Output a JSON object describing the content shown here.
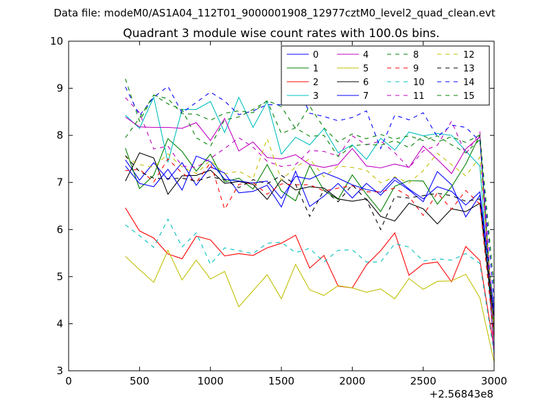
{
  "figure": {
    "suptitle": "Data file: modeM0/AS1A04_112T01_9000001908_12977cztM0_level2_quad_clean.evt",
    "background": "#ffffff"
  },
  "chart_data": {
    "type": "line",
    "title": "Quadrant 3 module wise count rates with 100.0s bins.",
    "xlabel": "",
    "ylabel": "",
    "xlim": [
      0,
      3000
    ],
    "ylim": [
      3,
      10
    ],
    "x_offset_label": "+2.56843e8",
    "xticks": [
      0,
      500,
      1000,
      1500,
      2000,
      2500,
      3000
    ],
    "yticks": [
      3,
      4,
      5,
      6,
      7,
      8,
      9,
      10
    ],
    "grid": false,
    "legend": {
      "position": "top-right",
      "columns": 4
    },
    "x": [
      400,
      500,
      600,
      700,
      800,
      900,
      1000,
      1100,
      1200,
      1300,
      1400,
      1500,
      1600,
      1700,
      1800,
      1900,
      2000,
      2100,
      2200,
      2300,
      2400,
      2500,
      2600,
      2700,
      2800,
      2900,
      3000
    ],
    "series": [
      {
        "name": "0",
        "color": "#0000ff",
        "style": "solid",
        "values": [
          7.48,
          7.05,
          7.42,
          7.06,
          7.42,
          6.94,
          7.33,
          7.2,
          6.78,
          6.81,
          6.94,
          6.48,
          7.24,
          6.49,
          6.71,
          6.98,
          6.67,
          6.98,
          6.73,
          7.05,
          6.84,
          6.59,
          7.23,
          6.95,
          6.27,
          6.73,
          4.15
        ]
      },
      {
        "name": "1",
        "color": "#008000",
        "style": "solid",
        "values": [
          7.73,
          6.87,
          7.15,
          7.93,
          7.66,
          7.24,
          7.6,
          7.01,
          7.09,
          6.86,
          7.38,
          6.82,
          6.61,
          7.36,
          6.83,
          6.64,
          7.16,
          6.75,
          6.38,
          6.92,
          7.04,
          7.03,
          6.54,
          6.91,
          7.39,
          8.01,
          3.68
        ]
      },
      {
        "name": "2",
        "color": "#ff0000",
        "style": "solid",
        "values": [
          6.46,
          5.97,
          5.82,
          5.48,
          5.38,
          5.86,
          5.78,
          5.44,
          5.49,
          5.45,
          5.61,
          5.71,
          5.88,
          5.18,
          5.45,
          4.8,
          4.76,
          5.25,
          5.55,
          5.93,
          5.03,
          5.27,
          5.31,
          4.89,
          5.64,
          5.34,
          3.47
        ]
      },
      {
        "name": "3",
        "color": "#00bfbf",
        "style": "solid",
        "values": [
          8.43,
          8.15,
          8.81,
          7.43,
          8.55,
          8.55,
          8.72,
          8.06,
          8.81,
          8.17,
          8.72,
          7.6,
          7.96,
          7.8,
          8.14,
          7.63,
          7.8,
          7.49,
          7.94,
          7.69,
          8.07,
          7.99,
          8.04,
          8.0,
          7.67,
          7.35,
          3.37
        ]
      },
      {
        "name": "4",
        "color": "#bf00bf",
        "style": "solid",
        "values": [
          8.39,
          8.18,
          8.17,
          8.17,
          8.15,
          8.27,
          7.89,
          8.36,
          7.67,
          7.86,
          7.53,
          7.5,
          7.59,
          7.38,
          7.32,
          7.38,
          7.72,
          7.35,
          7.31,
          7.39,
          7.32,
          7.77,
          7.49,
          7.19,
          7.71,
          7.97,
          3.31
        ]
      },
      {
        "name": "5",
        "color": "#bfbf00",
        "style": "solid",
        "values": [
          5.43,
          5.15,
          4.88,
          5.56,
          4.93,
          5.35,
          4.95,
          5.11,
          4.36,
          4.7,
          5.04,
          4.53,
          5.26,
          4.72,
          4.6,
          4.81,
          4.76,
          4.67,
          4.74,
          4.53,
          4.96,
          4.73,
          4.9,
          4.91,
          5.05,
          4.55,
          3.19
        ]
      },
      {
        "name": "6",
        "color": "#000000",
        "style": "solid",
        "values": [
          7.03,
          7.63,
          7.52,
          6.75,
          7.14,
          7.15,
          7.26,
          6.98,
          7.02,
          6.96,
          6.64,
          7.06,
          6.84,
          6.91,
          6.88,
          6.65,
          6.6,
          6.65,
          6.28,
          6.18,
          6.56,
          6.44,
          6.12,
          6.44,
          6.38,
          6.56,
          3.94
        ]
      },
      {
        "name": "7",
        "color": "#0000ff",
        "style": "solid",
        "values": [
          7.35,
          6.98,
          6.91,
          7.28,
          6.84,
          7.56,
          7.44,
          7.07,
          7.03,
          6.99,
          7.03,
          6.66,
          7.13,
          7.07,
          7.21,
          7.09,
          6.95,
          6.85,
          6.79,
          7.11,
          6.86,
          6.65,
          6.91,
          6.81,
          6.52,
          6.8,
          4.3
        ]
      },
      {
        "name": "8",
        "color": "#008000",
        "style": "dashed",
        "values": [
          9.2,
          8.3,
          8.85,
          8.78,
          8.46,
          8.45,
          8.32,
          8.47,
          8.52,
          8.48,
          8.74,
          8.61,
          8.14,
          8.62,
          8.16,
          7.86,
          8.03,
          7.93,
          8.02,
          7.92,
          7.99,
          7.89,
          7.99,
          7.8,
          7.63,
          7.91,
          3.86
        ]
      },
      {
        "name": "9",
        "color": "#ff0000",
        "style": "dashed",
        "values": [
          7.25,
          7.28,
          7.01,
          7.5,
          7.2,
          7.0,
          7.42,
          6.43,
          6.96,
          7.0,
          6.75,
          6.97,
          6.95,
          6.95,
          6.82,
          6.88,
          6.93,
          6.8,
          6.8,
          6.88,
          6.7,
          6.3,
          6.78,
          6.43,
          6.83,
          6.54,
          3.68
        ]
      },
      {
        "name": "10",
        "color": "#00bfbf",
        "style": "dashed",
        "values": [
          6.1,
          5.87,
          5.62,
          6.22,
          5.63,
          5.93,
          5.26,
          5.61,
          5.55,
          5.49,
          5.71,
          5.73,
          5.51,
          5.6,
          5.31,
          5.56,
          5.57,
          5.31,
          5.31,
          5.7,
          5.63,
          5.33,
          5.38,
          5.35,
          5.49,
          5.28,
          3.38
        ]
      },
      {
        "name": "11",
        "color": "#bf00bf",
        "style": "dashed",
        "values": [
          8.8,
          8.48,
          7.71,
          7.77,
          7.35,
          7.32,
          7.51,
          7.72,
          7.95,
          7.75,
          7.45,
          7.34,
          7.38,
          7.68,
          7.66,
          7.56,
          7.99,
          7.8,
          7.88,
          7.63,
          7.31,
          7.67,
          7.79,
          8.3,
          7.6,
          8.07,
          3.79
        ]
      },
      {
        "name": "12",
        "color": "#bfbf00",
        "style": "dashed",
        "values": [
          7.54,
          7.38,
          7.32,
          7.61,
          7.33,
          7.19,
          7.47,
          7.18,
          7.24,
          7.08,
          7.93,
          7.05,
          7.33,
          7.5,
          7.12,
          7.35,
          7.32,
          7.26,
          6.99,
          7.12,
          6.99,
          7.25,
          7.62,
          7.38,
          7.14,
          7.54,
          3.9
        ]
      },
      {
        "name": "13",
        "color": "#000000",
        "style": "dashed",
        "values": [
          7.57,
          7.23,
          7.09,
          7.08,
          7.09,
          7.03,
          7.12,
          7.06,
          6.89,
          7.06,
          6.97,
          7.15,
          6.96,
          6.28,
          6.84,
          6.59,
          6.95,
          6.63,
          6.0,
          6.7,
          6.67,
          6.72,
          6.77,
          6.72,
          6.6,
          6.65,
          4.09
        ]
      },
      {
        "name": "14",
        "color": "#0000ff",
        "style": "dashed",
        "values": [
          9.03,
          8.42,
          8.81,
          9.04,
          8.48,
          8.7,
          8.92,
          8.73,
          8.44,
          8.52,
          8.65,
          8.65,
          9.14,
          8.47,
          8.4,
          8.31,
          8.38,
          8.52,
          7.72,
          8.43,
          8.33,
          8.48,
          7.97,
          8.22,
          8.17,
          7.88,
          4.49
        ]
      },
      {
        "name": "15",
        "color": "#008000",
        "style": "dashed",
        "values": [
          7.95,
          8.37,
          8.86,
          8.67,
          8.55,
          7.95,
          7.77,
          8.33,
          8.39,
          8.55,
          8.73,
          8.04,
          8.16,
          7.98,
          8.0,
          7.55,
          7.78,
          7.81,
          7.79,
          7.89,
          7.74,
          7.99,
          7.86,
          7.97,
          7.85,
          8.01,
          4.77
        ]
      }
    ]
  }
}
